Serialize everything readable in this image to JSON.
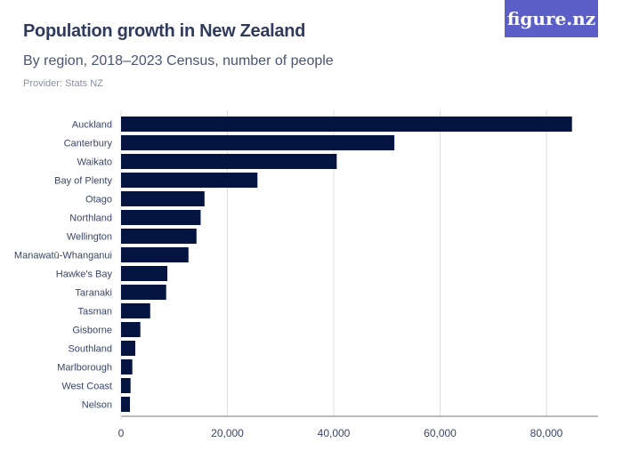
{
  "header": {
    "title": "Population growth in New Zealand",
    "subtitle": "By region, 2018–2023 Census, number of people",
    "provider": "Provider: Stats NZ",
    "logo": "figure.nz"
  },
  "colors": {
    "bar": "#031440",
    "grid": "#dddddd",
    "axis": "#777777",
    "label": "#3a4566",
    "logo_bg": "#5c5fc8"
  },
  "chart_data": {
    "type": "bar",
    "orientation": "horizontal",
    "title": "Population growth in New Zealand",
    "subtitle": "By region, 2018–2023 Census, number of people",
    "categories": [
      "Auckland",
      "Canterbury",
      "Waikato",
      "Bay of Plenty",
      "Otago",
      "Northland",
      "Wellington",
      "Manawatū-Whanganui",
      "Hawke's Bay",
      "Taranaki",
      "Tasman",
      "Gisborne",
      "Southland",
      "Marlborough",
      "West Coast",
      "Nelson"
    ],
    "values": [
      84800,
      51400,
      40560,
      25650,
      15700,
      14970,
      14190,
      12680,
      8710,
      8490,
      5480,
      3630,
      2680,
      2120,
      1790,
      1680
    ],
    "xlim": [
      0,
      90000
    ],
    "xticks": [
      0,
      20000,
      40000,
      60000,
      80000
    ],
    "xtick_labels": [
      "0",
      "20,000",
      "40,000",
      "60,000",
      "80,000"
    ],
    "grid": true,
    "xlabel": "",
    "ylabel": ""
  }
}
